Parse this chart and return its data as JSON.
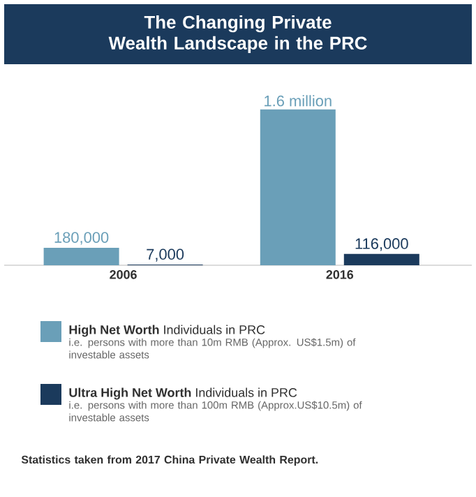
{
  "chart_data": {
    "type": "bar",
    "title": "The Changing Private\nWealth Landscape in the PRC",
    "categories": [
      "2006",
      "2016"
    ],
    "series": [
      {
        "name": "**High Net Worth** Individuals in PRC",
        "color": "#6a9fb8",
        "values": [
          180000,
          1600000
        ],
        "value_labels": [
          "180,000",
          "1.6 million"
        ]
      },
      {
        "name": "**Ultra High Net Worth** Individuals in PRC",
        "color": "#1b3a5c",
        "values": [
          7000,
          116000
        ],
        "value_labels": [
          "7,000",
          "116,000"
        ]
      }
    ],
    "annotations": [
      "i.e. persons with more than 10m RMB (Approx. US$1.5m) of investable assets",
      "i.e. persons with more than 100m RMB (Approx.US$10.5m) of investable assets",
      "Statistics taken from 2017 China Private Wealth Report."
    ],
    "legend": "bottom"
  }
}
